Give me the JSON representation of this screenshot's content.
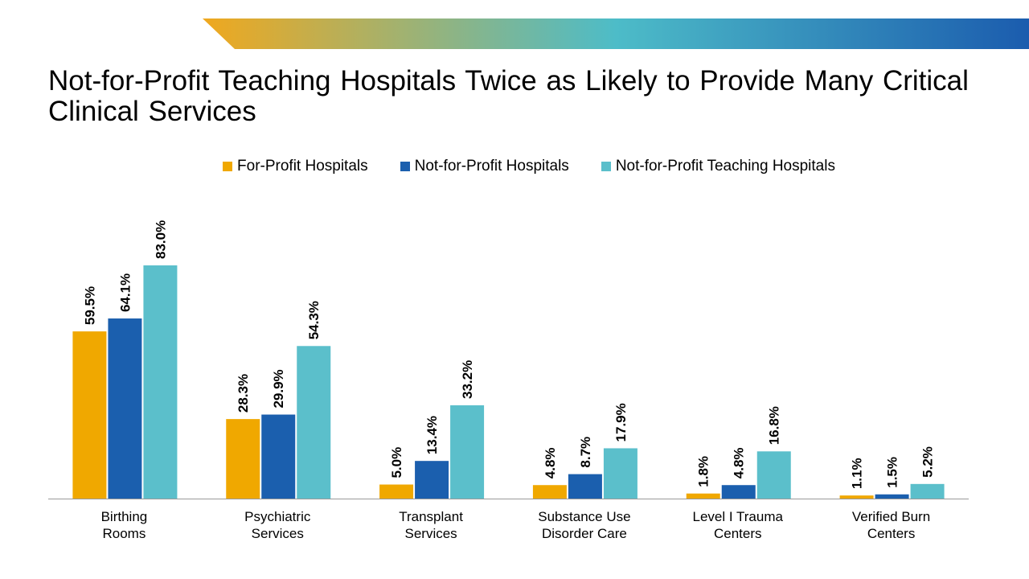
{
  "title": "Not-for-Profit Teaching Hospitals Twice as Likely to Provide Many Critical Clinical Services",
  "colors": {
    "for_profit": "#F0A800",
    "not_for_profit": "#1B5FAE",
    "teaching": "#5BBFCB",
    "banner_start": "#F0A81E",
    "banner_mid": "#4DBCC8",
    "banner_end": "#1B5CAE"
  },
  "legend": [
    {
      "label": "For-Profit Hospitals",
      "color": "#F0A800"
    },
    {
      "label": "Not-for-Profit Hospitals",
      "color": "#1B5FAE"
    },
    {
      "label": "Not-for-Profit Teaching Hospitals",
      "color": "#5BBFCB"
    }
  ],
  "chart_data": {
    "type": "bar",
    "title": "Not-for-Profit Teaching Hospitals Twice as Likely to Provide Many Critical Clinical Services",
    "xlabel": "",
    "ylabel": "",
    "unit": "%",
    "ylim": [
      0,
      83
    ],
    "categories": [
      [
        "Birthing",
        "Rooms"
      ],
      [
        "Psychiatric",
        "Services"
      ],
      [
        "Transplant",
        "Services"
      ],
      [
        "Substance Use",
        "Disorder Care"
      ],
      [
        "Level I Trauma",
        "Centers"
      ],
      [
        "Verified Burn",
        "Centers"
      ]
    ],
    "series": [
      {
        "name": "For-Profit Hospitals",
        "color": "#F0A800",
        "values": [
          59.5,
          28.3,
          5.0,
          4.8,
          1.8,
          1.1
        ],
        "labels": [
          "59.5%",
          "28.3%",
          "5.0%",
          "4.8%",
          "1.8%",
          "1.1%"
        ]
      },
      {
        "name": "Not-for-Profit Hospitals",
        "color": "#1B5FAE",
        "values": [
          64.1,
          29.9,
          13.4,
          8.7,
          4.8,
          1.5
        ],
        "labels": [
          "64.1%",
          "29.9%",
          "13.4%",
          "8.7%",
          "4.8%",
          "1.5%"
        ]
      },
      {
        "name": "Not-for-Profit Teaching Hospitals",
        "color": "#5BBFCB",
        "values": [
          83.0,
          54.3,
          33.2,
          17.9,
          16.8,
          5.2
        ],
        "labels": [
          "83.0%",
          "54.3%",
          "33.2%",
          "17.9%",
          "16.8%",
          "5.2%"
        ]
      }
    ]
  }
}
